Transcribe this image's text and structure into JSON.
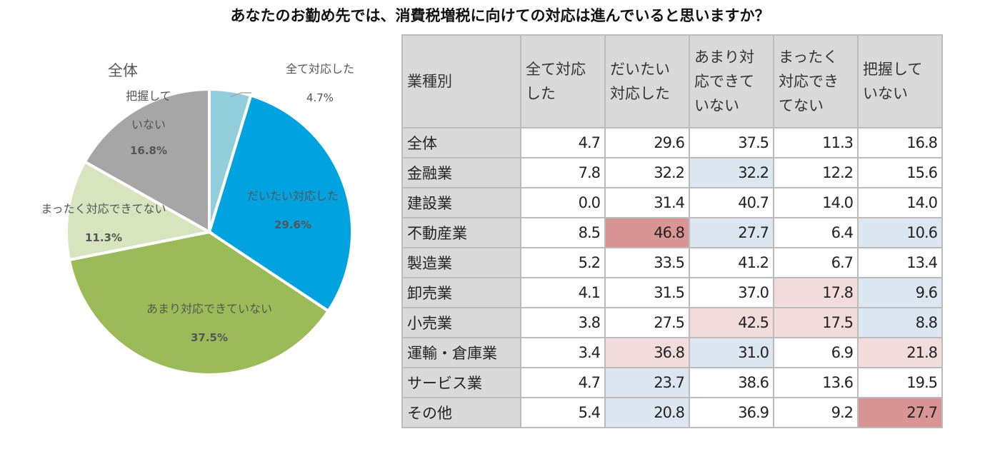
{
  "title": "あなたのお勤め先では、消費税増税に向けての対応は進んでいると思いますか？",
  "chart_data": [
    {
      "type": "pie",
      "title": "全体",
      "slices": [
        {
          "label": "全て対応した",
          "value": 4.7,
          "value_label": "4.7%",
          "color": "#92cddc"
        },
        {
          "label": "だいたい対応した",
          "value": 29.6,
          "value_label": "29.6%",
          "color": "#00a2e0"
        },
        {
          "label": "あまり対応できていない",
          "value": 37.5,
          "value_label": "37.5%",
          "color": "#9bbb59"
        },
        {
          "label": "まったく対応できてない",
          "value": 11.3,
          "value_label": "11.3%",
          "color": "#d7e4bd"
        },
        {
          "label": "把握していない",
          "label_lines": [
            "把握して",
            "いない"
          ],
          "value": 16.8,
          "value_label": "16.8%",
          "color": "#a6a6a6"
        }
      ]
    },
    {
      "type": "table",
      "columns": [
        "業種別",
        "全て対応した",
        "だいたい対応した",
        "あまり対応できていない",
        "まったく対応できてない",
        "把握していない"
      ],
      "column_lines": [
        [
          "業種別"
        ],
        [
          "全て対応",
          "した"
        ],
        [
          "だいたい",
          "対応した"
        ],
        [
          "あまり対",
          "応できて",
          "いない"
        ],
        [
          "まったく",
          "対応でき",
          "てない"
        ],
        [
          "把握して",
          "いない"
        ]
      ],
      "rows": [
        {
          "category": "全体",
          "values": [
            "4.7",
            "29.6",
            "37.5",
            "11.3",
            "16.8"
          ],
          "highlight": [
            "",
            "",
            "",
            "",
            ""
          ]
        },
        {
          "category": "金融業",
          "values": [
            "7.8",
            "32.2",
            "32.2",
            "12.2",
            "15.6"
          ],
          "highlight": [
            "",
            "",
            "lb",
            "",
            ""
          ]
        },
        {
          "category": "建設業",
          "values": [
            "0.0",
            "31.4",
            "40.7",
            "14.0",
            "14.0"
          ],
          "highlight": [
            "",
            "",
            "",
            "",
            ""
          ]
        },
        {
          "category": "不動産業",
          "values": [
            "8.5",
            "46.8",
            "27.7",
            "6.4",
            "10.6"
          ],
          "highlight": [
            "",
            "dr",
            "lb",
            "",
            "lb"
          ]
        },
        {
          "category": "製造業",
          "values": [
            "5.2",
            "33.5",
            "41.2",
            "6.7",
            "13.4"
          ],
          "highlight": [
            "",
            "",
            "",
            "",
            ""
          ]
        },
        {
          "category": "卸売業",
          "values": [
            "4.1",
            "31.5",
            "37.0",
            "17.8",
            "9.6"
          ],
          "highlight": [
            "",
            "",
            "",
            "lr",
            "lb"
          ]
        },
        {
          "category": "小売業",
          "values": [
            "3.8",
            "27.5",
            "42.5",
            "17.5",
            "8.8"
          ],
          "highlight": [
            "",
            "",
            "lr",
            "lr",
            "lb"
          ]
        },
        {
          "category": "運輸・倉庫業",
          "values": [
            "3.4",
            "36.8",
            "31.0",
            "6.9",
            "21.8"
          ],
          "highlight": [
            "",
            "lr",
            "lb",
            "",
            "lr"
          ]
        },
        {
          "category": "サービス業",
          "values": [
            "4.7",
            "23.7",
            "38.6",
            "13.6",
            "19.5"
          ],
          "highlight": [
            "",
            "lb",
            "",
            "",
            ""
          ]
        },
        {
          "category": "その他",
          "values": [
            "5.4",
            "20.8",
            "36.9",
            "9.2",
            "27.7"
          ],
          "highlight": [
            "",
            "lb",
            "",
            "",
            "dr"
          ]
        }
      ],
      "highlight_colors": {
        "dr": "#d99594",
        "lr": "#f2dcdb",
        "lb": "#dce6f1"
      }
    }
  ]
}
